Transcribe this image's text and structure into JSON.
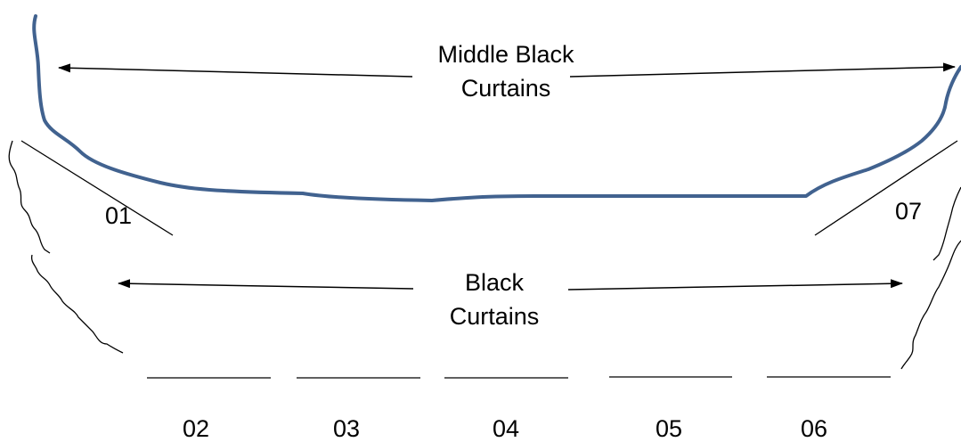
{
  "middle_curtains": {
    "label_line1": "Middle Black",
    "label_line2": "Curtains",
    "stroke_color": "#41628F"
  },
  "black_curtains": {
    "label_line1": "Black",
    "label_line2": "Curtains"
  },
  "segments": [
    {
      "id": "01"
    },
    {
      "id": "02"
    },
    {
      "id": "03"
    },
    {
      "id": "04"
    },
    {
      "id": "05"
    },
    {
      "id": "06"
    },
    {
      "id": "07"
    }
  ]
}
